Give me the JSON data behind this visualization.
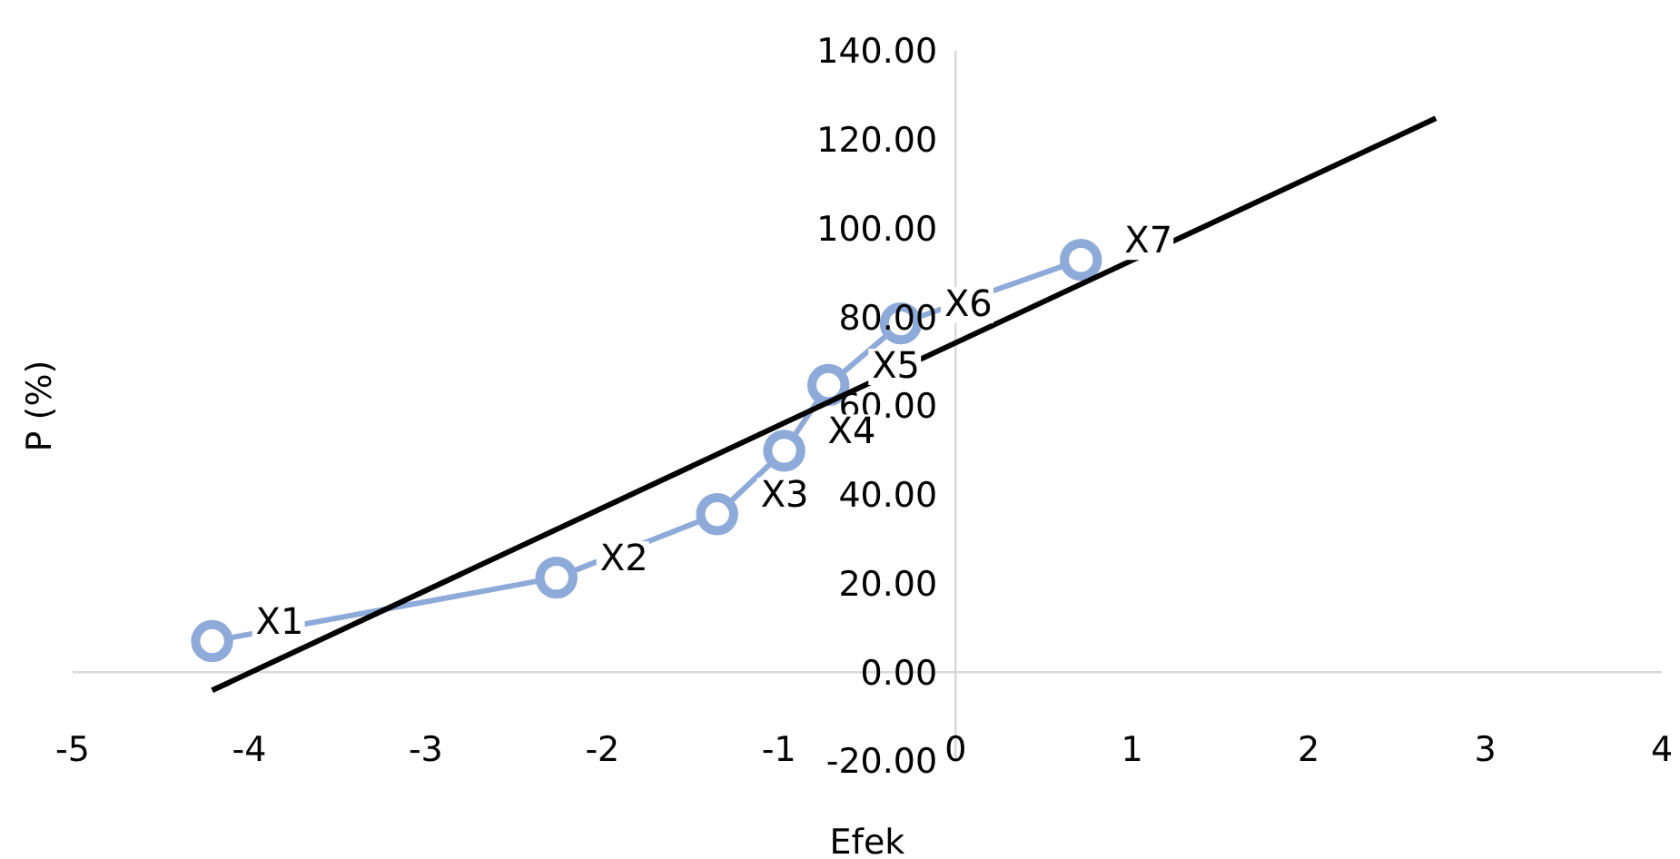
{
  "chart_data": {
    "type": "line",
    "xlabel": "Efek",
    "ylabel": "P (%)",
    "xlim": [
      -5,
      4
    ],
    "xticks": [
      -5,
      -4,
      -3,
      -2,
      -1,
      0,
      1,
      2,
      3,
      4
    ],
    "ylim": [
      -20,
      140
    ],
    "yticks": [
      {
        "value": -20,
        "label": "-20.00"
      },
      {
        "value": 0,
        "label": "0.00"
      },
      {
        "value": 20,
        "label": "20.00"
      },
      {
        "value": 40,
        "label": "40.00"
      },
      {
        "value": 60,
        "label": "60.00"
      },
      {
        "value": 80,
        "label": "80.00"
      },
      {
        "value": 100,
        "label": "100.00"
      },
      {
        "value": 120,
        "label": "120.00"
      },
      {
        "value": 140,
        "label": "140.00"
      }
    ],
    "grid": false,
    "marker": "circle",
    "series": [
      {
        "color": "#8eaad8",
        "x": [
          -4.21,
          -2.26,
          -1.35,
          -0.97,
          -0.72,
          -0.31,
          0.71
        ],
        "values": [
          7,
          21.3,
          35.6,
          49.9,
          64.7,
          78.6,
          92.9
        ]
      },
      {
        "color": "#000000",
        "marker": "none",
        "x": [
          -4.21,
          2.72
        ],
        "values": [
          -4.1,
          124.8
        ]
      }
    ],
    "annotations": [
      {
        "text": "X1",
        "x": -4.21,
        "y": 7
      },
      {
        "text": "X2",
        "x": -2.26,
        "y": 21.3
      },
      {
        "text": "X3",
        "x": -1.35,
        "y": 35.6
      },
      {
        "text": "X4",
        "x": -0.97,
        "y": 49.9
      },
      {
        "text": "X5",
        "x": -0.72,
        "y": 64.7
      },
      {
        "text": "X6",
        "x": -0.31,
        "y": 78.6
      },
      {
        "text": "X7",
        "x": 0.71,
        "y": 92.9
      }
    ]
  }
}
